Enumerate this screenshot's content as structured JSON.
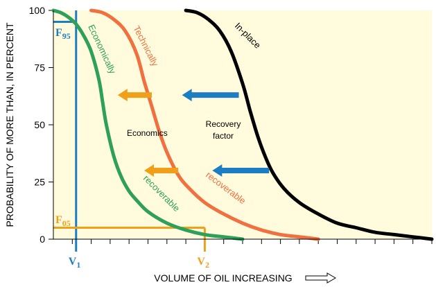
{
  "chart_data": {
    "type": "line",
    "title": "",
    "xlabel": "VOLUME OF OIL INCREASING",
    "xlabel_arrow": "hollow-right-arrow",
    "ylabel": "PROBABILITY OF MORE THAN, IN PERCENT",
    "ylim": [
      0,
      100
    ],
    "xlim": [
      0,
      100
    ],
    "yticks": [
      0,
      25,
      50,
      75,
      100
    ],
    "xticks": [
      5,
      10,
      15,
      20,
      25,
      30,
      35,
      40,
      45,
      50,
      55,
      60,
      65,
      70,
      75,
      80,
      85,
      90,
      95,
      100
    ],
    "grid": false,
    "plot_background": "#fffbdc",
    "series": [
      {
        "name": "Economically recoverable",
        "label_upper": "Economically",
        "label_lower": "recoverable",
        "color": "#2ea05a",
        "x": [
          0,
          2,
          4,
          6,
          8,
          10,
          12,
          13,
          14,
          16,
          18,
          20,
          22,
          25,
          30,
          35,
          40,
          45,
          50
        ],
        "y": [
          100,
          99,
          97,
          94,
          89,
          82,
          70,
          60,
          50,
          36,
          27,
          21,
          17,
          12,
          7,
          4,
          2,
          1,
          0
        ]
      },
      {
        "name": "Technically recoverable",
        "label_upper": "Technically",
        "label_lower": "recoverable",
        "color": "#f07040",
        "x": [
          10,
          13,
          16,
          19,
          22,
          24,
          26,
          28,
          30,
          33,
          36,
          40,
          45,
          50,
          55,
          60,
          65,
          70
        ],
        "y": [
          100,
          99,
          96,
          91,
          81,
          69,
          58,
          47,
          38,
          28,
          22,
          16,
          11,
          7,
          4,
          2,
          1,
          0
        ]
      },
      {
        "name": "In-place",
        "label_upper": "In-place",
        "color": "#000000",
        "x": [
          35,
          38,
          41,
          44,
          47,
          50,
          52,
          54,
          56,
          58,
          61,
          65,
          70,
          75,
          80,
          85,
          90,
          95,
          100
        ],
        "y": [
          100,
          99,
          96,
          91,
          82,
          68,
          56,
          45,
          36,
          29,
          22,
          16,
          11,
          7,
          5,
          3,
          2,
          1,
          0
        ]
      }
    ],
    "reference_lines": {
      "F95": {
        "label_main": "F",
        "label_sub": "95",
        "y": 95,
        "x_end": 6,
        "color": "#1b7ec2"
      },
      "F05": {
        "label_main": "F",
        "label_sub": "05",
        "y": 5,
        "x_end": 40,
        "color": "#f0a018"
      },
      "V1": {
        "label_main": "V",
        "label_sub": "1",
        "x": 6,
        "color": "#1b7ec2"
      },
      "V2": {
        "label_main": "V",
        "label_sub": "2",
        "x": 40,
        "color": "#f0a018"
      }
    },
    "annotations": [
      {
        "text": "Economics",
        "x": 25,
        "y": 47
      },
      {
        "text_lines": [
          "Recovery",
          "factor"
        ],
        "x": 45,
        "y": 48
      }
    ],
    "arrows": [
      {
        "direction": "left",
        "color": "#f0a018",
        "x_from": 26,
        "x_to": 17,
        "y": 63
      },
      {
        "direction": "left",
        "color": "#1b7ec2",
        "x_from": 49,
        "x_to": 34,
        "y": 63
      },
      {
        "direction": "left",
        "color": "#f0a018",
        "x_from": 33,
        "x_to": 24,
        "y": 30
      },
      {
        "direction": "left",
        "color": "#1b7ec2",
        "x_from": 57,
        "x_to": 42,
        "y": 30
      }
    ]
  }
}
